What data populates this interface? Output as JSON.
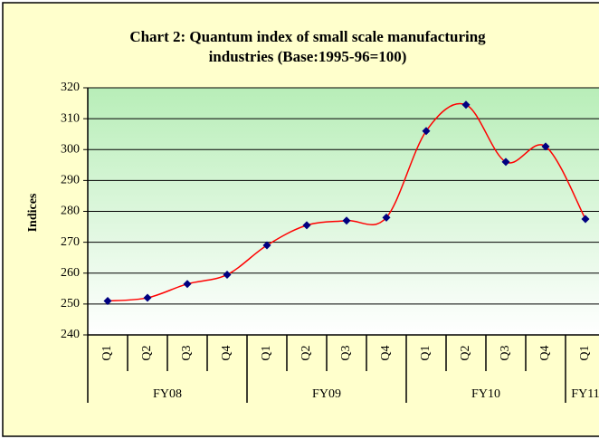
{
  "chart_data": {
    "type": "line",
    "title_lines": [
      "Chart 2: Quantum index of small scale manufacturing",
      "industries (Base:1995-96=100)"
    ],
    "y_label": "Indices",
    "groups": [
      {
        "name": "FY08",
        "categories": [
          "Q1",
          "Q2",
          "Q3",
          "Q4"
        ]
      },
      {
        "name": "FY09",
        "categories": [
          "Q1",
          "Q2",
          "Q3",
          "Q4"
        ]
      },
      {
        "name": "FY10",
        "categories": [
          "Q1",
          "Q2",
          "Q3",
          "Q4"
        ]
      },
      {
        "name": "FY11",
        "categories": [
          "Q1"
        ]
      }
    ],
    "values": [
      251,
      252,
      256.5,
      259.5,
      269,
      275.5,
      277,
      278,
      306,
      314.5,
      296,
      301,
      277.5
    ],
    "color": "#ff0000",
    "marker_color": "#000080",
    "ylim": [
      240,
      320
    ],
    "yticks": [
      240,
      250,
      260,
      270,
      280,
      290,
      300,
      310,
      320
    ],
    "grid": true
  }
}
